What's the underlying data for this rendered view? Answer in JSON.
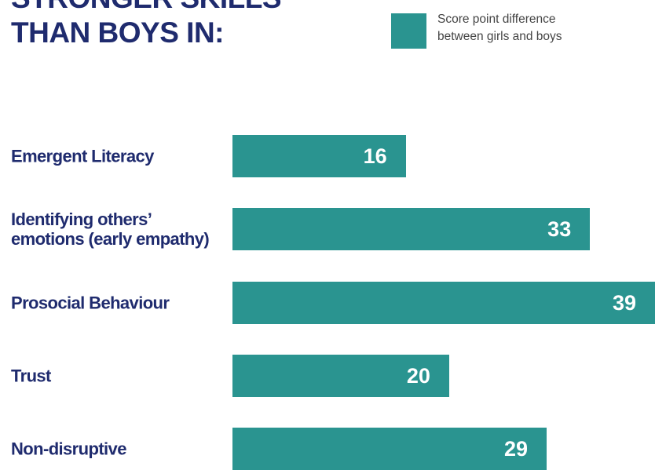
{
  "chart_data": {
    "type": "bar",
    "orientation": "horizontal",
    "title": "STRONGER SKILLS\nTHAN BOYS IN:",
    "categories": [
      "Emergent Literacy",
      "Identifying others’\nemotions (early empathy)",
      "Prosocial Behaviour",
      "Trust",
      "Non-disruptive"
    ],
    "series": [
      {
        "name": "Score point difference\nbetween girls and boys",
        "color": "#2a9490",
        "values": [
          16,
          33,
          39,
          20,
          29
        ]
      }
    ]
  }
}
